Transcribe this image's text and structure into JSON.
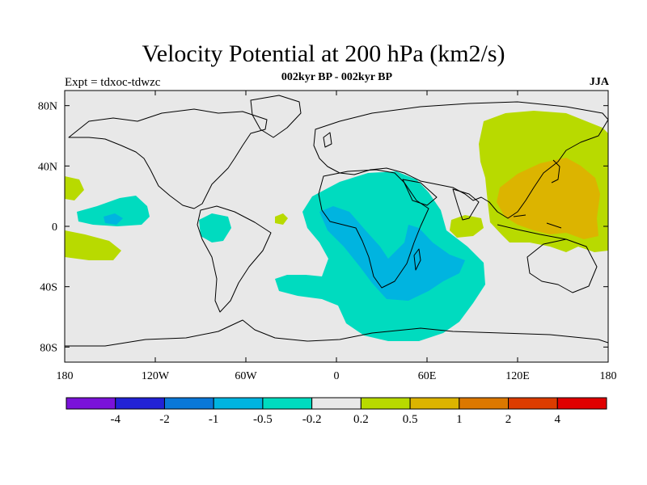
{
  "title": "Velocity Potential at 200 hPa (km2/s)",
  "subtitle": "002kyr BP - 002kyr BP",
  "left_string": "Expt = tdxoc-tdwzc",
  "right_string": "JJA",
  "map": {
    "lon_range": [
      -180,
      180
    ],
    "lat_range": [
      -90,
      90
    ],
    "x_ticks": [
      "180",
      "120W",
      "60W",
      "0",
      "60E",
      "120E",
      "180"
    ],
    "y_ticks": [
      "80N",
      "40N",
      "0",
      "40S",
      "80S"
    ],
    "land_color": "#e8e8e8"
  },
  "colorbar": {
    "labels": [
      "-4",
      "-2",
      "-1",
      "-0.5",
      "-0.2",
      "0.2",
      "0.5",
      "1",
      "2",
      "4"
    ],
    "colors": [
      "#7a12d9",
      "#2222d6",
      "#0a78d8",
      "#00b4e0",
      "#00dbbf",
      "#e8e8e8",
      "#b8da00",
      "#dcb400",
      "#dc7800",
      "#dc3c00",
      "#e00000"
    ]
  }
}
